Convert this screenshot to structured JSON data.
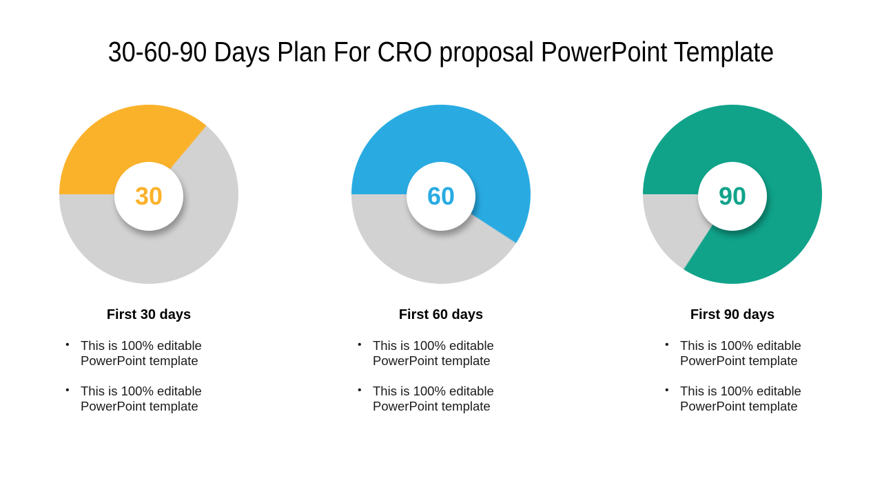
{
  "title": "30-60-90 Days Plan For CRO proposal PowerPoint Template",
  "colors": {
    "yellow": "#FBB22B",
    "blue": "#29ABE2",
    "green": "#10A38A",
    "remainder_gray": "#D2D2D2",
    "background": "#FFFFFF",
    "text": "#1A1A1A"
  },
  "sections": [
    {
      "center_label": "30",
      "heading": "First 30 days",
      "accent": "#FBB22B",
      "filled_degrees": 130,
      "bullets": [
        [
          "This is 100% editable",
          "PowerPoint template"
        ],
        [
          "This is 100% editable",
          "PowerPoint template"
        ]
      ]
    },
    {
      "center_label": "60",
      "heading": "First 60 days",
      "accent": "#29ABE2",
      "filled_degrees": 213,
      "bullets": [
        [
          "This is 100% editable",
          "PowerPoint template"
        ],
        [
          "This is 100% editable",
          "PowerPoint template"
        ]
      ]
    },
    {
      "center_label": "90",
      "heading": "First 90 days",
      "accent": "#10A38A",
      "filled_degrees": 303,
      "bullets": [
        [
          "This is 100% editable",
          "PowerPoint template"
        ],
        [
          "This is 100% editable",
          "PowerPoint template"
        ]
      ]
    }
  ],
  "chart_data": [
    {
      "type": "pie",
      "title": "First 30 days",
      "center_label": "30",
      "start_angle": "9 o'clock, sweeping clockwise",
      "slices": [
        {
          "label": "30",
          "value_degrees": 130,
          "percent": 36,
          "color": "#FBB22B"
        },
        {
          "label": "remaining",
          "value_degrees": 230,
          "percent": 64,
          "color": "#D2D2D2"
        }
      ]
    },
    {
      "type": "pie",
      "title": "First 60 days",
      "center_label": "60",
      "start_angle": "9 o'clock, sweeping clockwise",
      "slices": [
        {
          "label": "60",
          "value_degrees": 213,
          "percent": 59,
          "color": "#29ABE2"
        },
        {
          "label": "remaining",
          "value_degrees": 147,
          "percent": 41,
          "color": "#D2D2D2"
        }
      ]
    },
    {
      "type": "pie",
      "title": "First 90 days",
      "center_label": "90",
      "start_angle": "9 o'clock, sweeping clockwise",
      "slices": [
        {
          "label": "90",
          "value_degrees": 303,
          "percent": 84,
          "color": "#10A38A"
        },
        {
          "label": "remaining",
          "value_degrees": 57,
          "percent": 16,
          "color": "#D2D2D2"
        }
      ]
    }
  ]
}
